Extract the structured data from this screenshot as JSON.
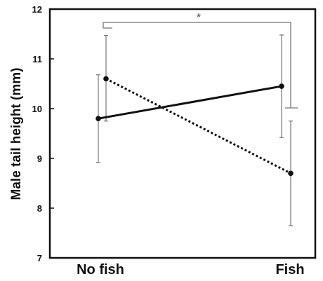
{
  "chart_data": {
    "type": "line",
    "categories": [
      "No fish",
      "Fish"
    ],
    "ylabel": "Male tail height (mm)",
    "ylim": [
      7,
      12
    ],
    "yticks": [
      7,
      8,
      9,
      10,
      11,
      12
    ],
    "grid": false,
    "legend": "none",
    "series": [
      {
        "style": "solid",
        "color": "#111111",
        "values": [
          9.8,
          10.45
        ],
        "err_low": [
          8.92,
          9.42
        ],
        "err_high": [
          10.68,
          11.48
        ]
      },
      {
        "style": "dotted",
        "color": "#111111",
        "values": [
          10.6,
          8.7
        ],
        "err_low": [
          9.75,
          7.65
        ],
        "err_high": [
          11.47,
          9.75
        ]
      }
    ],
    "annotation": {
      "text": "*",
      "type": "significance-bracket"
    }
  }
}
